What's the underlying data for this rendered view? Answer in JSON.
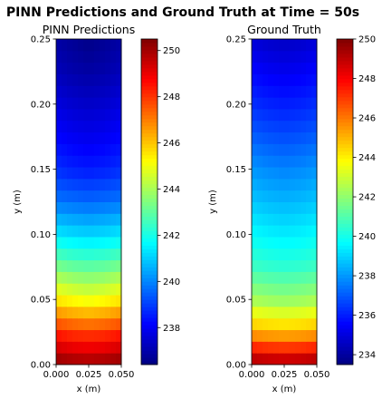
{
  "figure": {
    "title": "PINN Predictions and Ground Truth at Time = 50s"
  },
  "chart_data": [
    {
      "type": "heatmap",
      "title": "PINN Predictions",
      "xlabel": "x (m)",
      "ylabel": "y (m)",
      "xlim": [
        0.0,
        0.05
      ],
      "ylim": [
        0.0,
        0.25
      ],
      "x_ticks": [
        "0.000",
        "0.025",
        "0.050"
      ],
      "y_ticks": [
        "0.00",
        "0.05",
        "0.10",
        "0.15",
        "0.20",
        "0.25"
      ],
      "colormap": "jet",
      "colorbar": {
        "min": 236.4,
        "max": 250.5,
        "ticks": [
          "238",
          "240",
          "242",
          "244",
          "246",
          "248",
          "250"
        ]
      },
      "grid": {
        "x": [
          0.0,
          0.0125,
          0.025,
          0.0375,
          0.05
        ],
        "y": [
          0.0,
          0.025,
          0.05,
          0.075,
          0.1,
          0.125,
          0.15,
          0.175,
          0.2,
          0.225,
          0.25
        ],
        "values": [
          [
            250.4,
            250.2,
            250.1,
            250.2,
            250.4
          ],
          [
            248.3,
            248.0,
            247.9,
            248.0,
            248.3
          ],
          [
            245.5,
            245.2,
            245.0,
            245.2,
            245.5
          ],
          [
            243.4,
            243.1,
            243.0,
            243.1,
            243.4
          ],
          [
            241.4,
            241.2,
            241.1,
            241.2,
            241.4
          ],
          [
            239.8,
            239.7,
            239.6,
            239.7,
            239.8
          ],
          [
            238.8,
            238.6,
            238.5,
            238.6,
            238.8
          ],
          [
            238.2,
            238.0,
            237.9,
            238.0,
            238.2
          ],
          [
            237.7,
            237.5,
            237.4,
            237.5,
            237.7
          ],
          [
            237.2,
            237.0,
            236.9,
            237.0,
            237.2
          ],
          [
            236.9,
            236.7,
            236.5,
            236.7,
            236.9
          ]
        ]
      }
    },
    {
      "type": "heatmap",
      "title": "Ground Truth",
      "xlabel": "x (m)",
      "ylabel": "y (m)",
      "xlim": [
        0.0,
        0.05
      ],
      "ylim": [
        0.0,
        0.25
      ],
      "x_ticks": [
        "0.000",
        "0.025",
        "0.050"
      ],
      "y_ticks": [
        "0.00",
        "0.05",
        "0.10",
        "0.15",
        "0.20",
        "0.25"
      ],
      "colormap": "jet",
      "colorbar": {
        "min": 233.5,
        "max": 250.0,
        "ticks": [
          "234",
          "236",
          "238",
          "240",
          "242",
          "244",
          "246",
          "248",
          "250"
        ]
      },
      "grid": {
        "x": [
          0.0,
          0.0125,
          0.025,
          0.0375,
          0.05
        ],
        "y": [
          0.0,
          0.025,
          0.05,
          0.075,
          0.1,
          0.125,
          0.15,
          0.175,
          0.2,
          0.225,
          0.25
        ],
        "values": [
          [
            249.8,
            249.6,
            249.5,
            249.6,
            249.8
          ],
          [
            245.2,
            245.0,
            244.9,
            245.0,
            245.2
          ],
          [
            242.4,
            242.2,
            242.1,
            242.2,
            242.4
          ],
          [
            240.7,
            240.5,
            240.4,
            240.5,
            240.7
          ],
          [
            239.7,
            239.5,
            239.4,
            239.5,
            239.7
          ],
          [
            238.8,
            238.6,
            238.5,
            238.6,
            238.8
          ],
          [
            238.0,
            237.8,
            237.7,
            237.8,
            238.0
          ],
          [
            237.1,
            236.9,
            236.8,
            236.9,
            237.1
          ],
          [
            236.3,
            236.1,
            236.0,
            236.1,
            236.3
          ],
          [
            235.6,
            235.4,
            235.3,
            235.4,
            235.6
          ],
          [
            234.9,
            234.7,
            234.6,
            234.7,
            234.9
          ]
        ]
      }
    }
  ]
}
